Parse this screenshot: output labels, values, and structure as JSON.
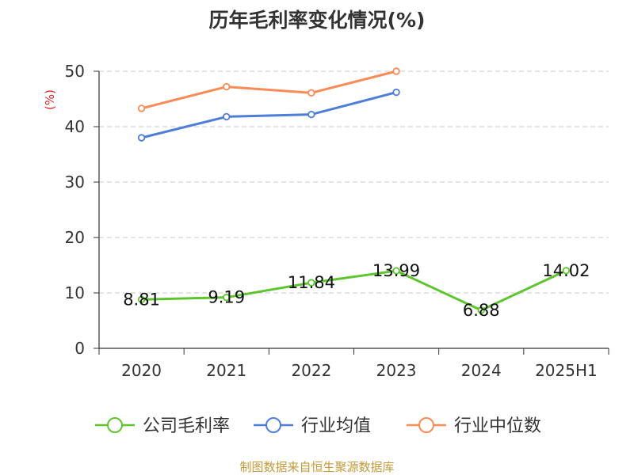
{
  "colors": {
    "gross_margin": "#5ec52e",
    "industry_mean": "#4e7ed8",
    "industry_median": "#f98b57",
    "ylabel": "#d62728",
    "source": "#c49a3a"
  },
  "chart_data": {
    "type": "line",
    "title": "历年毛利率变化情况(%)",
    "ylabel": "(%)",
    "categories": [
      "2020",
      "2021",
      "2022",
      "2023",
      "2024",
      "2025H1"
    ],
    "ylim": [
      0,
      50
    ],
    "yticks": [
      0,
      10,
      20,
      30,
      40,
      50
    ],
    "grid": true,
    "legend_position": "bottom",
    "series": [
      {
        "key": "gross_margin",
        "name": "公司毛利率",
        "values": [
          8.81,
          9.19,
          11.84,
          13.99,
          6.88,
          14.02
        ],
        "labels": [
          "8.81",
          "9.19",
          "11.84",
          "13.99",
          "6.88",
          "14.02"
        ]
      },
      {
        "key": "industry_mean",
        "name": "行业均值",
        "values": [
          38.0,
          41.8,
          42.2,
          46.2,
          null,
          null
        ]
      },
      {
        "key": "industry_median",
        "name": "行业中位数",
        "values": [
          43.3,
          47.2,
          46.1,
          50.0,
          null,
          null
        ]
      }
    ]
  },
  "source": "制图数据来自恒生聚源数据库"
}
